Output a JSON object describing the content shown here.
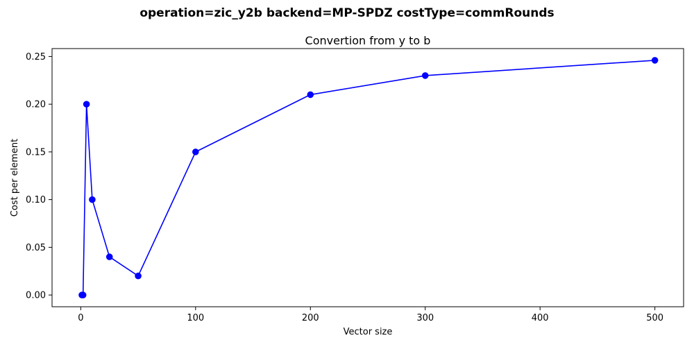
{
  "figure": {
    "suptitle": "operation=zic_y2b backend=MP-SPDZ costType=commRounds"
  },
  "colors": {
    "series": "#0000ff",
    "axes": "#000000",
    "background": "#ffffff"
  },
  "chart_data": {
    "type": "line",
    "title": "Convertion from y to b",
    "xlabel": "Vector size",
    "ylabel": "Cost per element",
    "xlim": [
      -25,
      525
    ],
    "ylim": [
      -0.0123,
      0.2583
    ],
    "grid": false,
    "xticks": [
      0,
      100,
      200,
      300,
      400,
      500
    ],
    "xtick_labels": [
      "0",
      "100",
      "200",
      "300",
      "400",
      "500"
    ],
    "yticks": [
      0.0,
      0.05,
      0.1,
      0.15,
      0.2,
      0.25
    ],
    "ytick_labels": [
      "0.00",
      "0.05",
      "0.10",
      "0.15",
      "0.20",
      "0.25"
    ],
    "series": [
      {
        "marker": "circle",
        "x": [
          1,
          2,
          5,
          10,
          25,
          50,
          100,
          200,
          300,
          500
        ],
        "y": [
          0.0,
          0.0,
          0.2,
          0.1,
          0.04,
          0.02,
          0.15,
          0.21,
          0.23,
          0.246
        ]
      }
    ]
  }
}
